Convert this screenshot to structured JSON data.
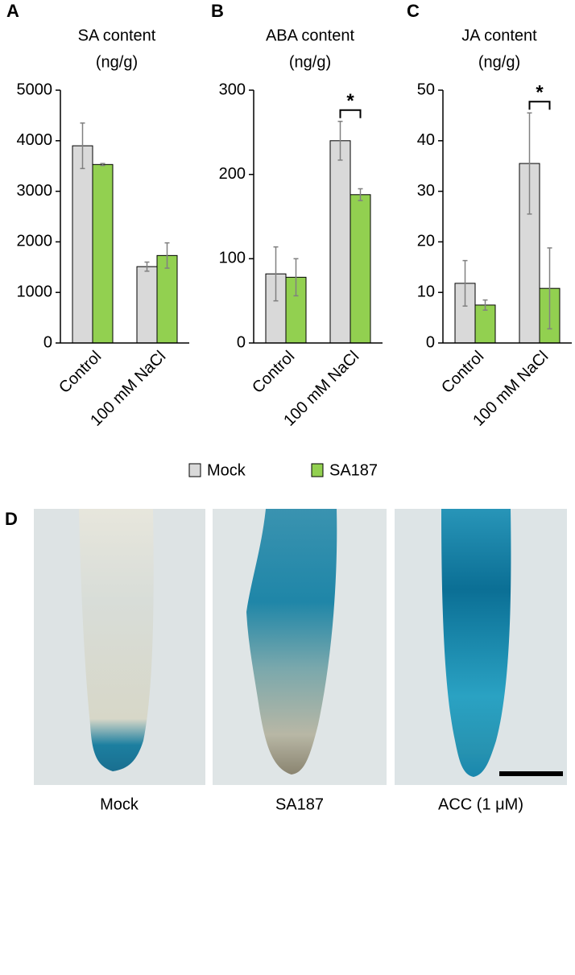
{
  "chart_data": [
    {
      "type": "bar",
      "panel": "A",
      "title": "SA content",
      "subtitle": "(ng/g)",
      "categories": [
        "Control",
        "100 mM NaCl"
      ],
      "series": [
        {
          "name": "Mock",
          "color": "#d9d9d9",
          "values": [
            3900,
            1510
          ],
          "errors": [
            450,
            90
          ]
        },
        {
          "name": "SA187",
          "color": "#92d050",
          "values": [
            3530,
            1730
          ],
          "errors": [
            20,
            250
          ]
        }
      ],
      "ylim": [
        0,
        5000
      ],
      "yticks": [
        0,
        1000,
        2000,
        3000,
        4000,
        5000
      ]
    },
    {
      "type": "bar",
      "panel": "B",
      "title": "ABA content",
      "subtitle": "(ng/g)",
      "categories": [
        "Control",
        "100 mM NaCl"
      ],
      "series": [
        {
          "name": "Mock",
          "color": "#d9d9d9",
          "values": [
            82,
            240
          ],
          "errors": [
            32,
            23
          ]
        },
        {
          "name": "SA187",
          "color": "#92d050",
          "values": [
            78,
            176
          ],
          "errors": [
            22,
            7
          ]
        }
      ],
      "ylim": [
        0,
        300
      ],
      "yticks": [
        0,
        100,
        200,
        300
      ],
      "annotations": [
        {
          "text": "*",
          "category": "100 mM NaCl"
        }
      ]
    },
    {
      "type": "bar",
      "panel": "C",
      "title": "JA content",
      "subtitle": "(ng/g)",
      "categories": [
        "Control",
        "100 mM NaCl"
      ],
      "series": [
        {
          "name": "Mock",
          "color": "#d9d9d9",
          "values": [
            11.8,
            35.5
          ],
          "errors": [
            4.5,
            10
          ]
        },
        {
          "name": "SA187",
          "color": "#92d050",
          "values": [
            7.5,
            10.8
          ],
          "errors": [
            1,
            8
          ]
        }
      ],
      "ylim": [
        0,
        50
      ],
      "yticks": [
        0,
        10,
        20,
        30,
        40,
        50
      ],
      "annotations": [
        {
          "text": "*",
          "category": "100 mM NaCl"
        }
      ]
    }
  ],
  "panel_d": {
    "label": "D",
    "images": [
      {
        "caption": "Mock"
      },
      {
        "caption": "SA187"
      },
      {
        "caption": "ACC (1 μM)"
      }
    ]
  }
}
